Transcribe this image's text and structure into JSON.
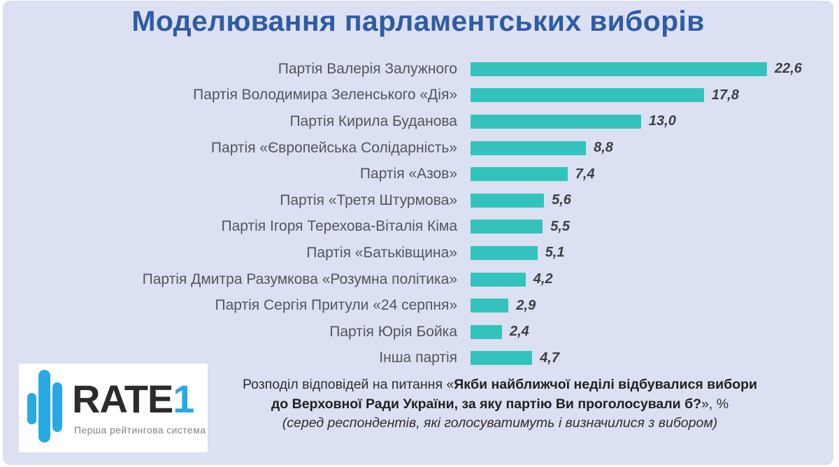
{
  "title": "Моделювання парламентських виборів",
  "chart_data": {
    "type": "bar",
    "orientation": "horizontal",
    "title": "Моделювання парламентських виборів",
    "xlabel": "",
    "ylabel": "",
    "xlim": [
      0,
      24
    ],
    "grid": false,
    "legend": false,
    "value_labels": true,
    "value_format": "comma-decimal",
    "bar_color": "#34c3bc",
    "categories": [
      "Партія Валерія Залужного",
      "Партія Володимира Зеленського «Дія»",
      "Партія Кирила Буданова",
      "Партія «Європейська Солідарність»",
      "Партія «Азов»",
      "Партія «Третя Штурмова»",
      "Партія Ігоря Терехова-Віталія Кіма",
      "Партія «Батьківщина»",
      "Партія Дмитра Разумкова «Розумна політика»",
      "Партія Сергія Притули «24 серпня»",
      "Партія Юрія Бойка",
      "Інша партія"
    ],
    "values": [
      22.6,
      17.8,
      13.0,
      8.8,
      7.4,
      5.6,
      5.5,
      5.1,
      4.2,
      2.9,
      2.4,
      4.7
    ]
  },
  "footnote": {
    "line1_regular": "Розподіл відповідей на питання «",
    "line1_bold": "Якби найближчої неділі відбувалися вибори",
    "line2_bold": "до Верховної Ради України, за яку партію Ви проголосували б?",
    "line2_regular": "», %",
    "line3": "(серед респондентів, які голосуватимуть і визначилися з вибором)"
  },
  "logo": {
    "brand": "RATE",
    "brand_suffix": "1",
    "tagline": "Перша рейтингова система",
    "accent_color": "#29a9e1"
  },
  "colors": {
    "background": "#dbe0f2",
    "title": "#2e5ba6",
    "bar": "#34c3bc",
    "label": "#54565a",
    "value": "#3d3f42"
  }
}
